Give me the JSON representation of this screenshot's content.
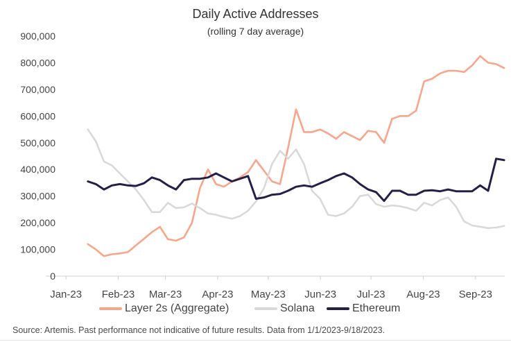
{
  "chart_data": {
    "type": "line",
    "title": "Daily Active Addresses",
    "subtitle": "(rolling 7 day average)",
    "xlabel": "",
    "ylabel": "",
    "x_range": [
      "2023-01-14",
      "2023-09-18"
    ],
    "xlim": [
      "2022-12-20",
      "2023-09-20"
    ],
    "ylim": [
      0,
      900000
    ],
    "x_tick_labels": [
      "Jan-23",
      "Feb-23",
      "Mar-23",
      "Apr-23",
      "May-23",
      "Jun-23",
      "Jul-23",
      "Aug-23",
      "Sep-23"
    ],
    "x_tick_dates": [
      "2023-01-01",
      "2023-02-01",
      "2023-03-01",
      "2023-04-01",
      "2023-05-01",
      "2023-06-01",
      "2023-07-01",
      "2023-08-01",
      "2023-09-01"
    ],
    "y_ticks": [
      0,
      100000,
      200000,
      300000,
      400000,
      500000,
      600000,
      700000,
      800000,
      900000
    ],
    "y_tick_labels": [
      "0",
      "100,000",
      "200,000",
      "300,000",
      "400,000",
      "500,000",
      "600,000",
      "700,000",
      "800,000",
      "900,000"
    ],
    "grid": false,
    "legend_position": "bottom",
    "series": [
      {
        "name": "Layer 2s (Aggregate)",
        "color": "#F9A58A",
        "values": [
          120000,
          100000,
          75000,
          82000,
          85000,
          90000,
          115000,
          140000,
          165000,
          185000,
          138000,
          133000,
          145000,
          200000,
          330000,
          400000,
          345000,
          335000,
          355000,
          370000,
          390000,
          435000,
          395000,
          355000,
          345000,
          480000,
          625000,
          540000,
          540000,
          550000,
          535000,
          515000,
          540000,
          525000,
          510000,
          545000,
          540000,
          500000,
          590000,
          600000,
          600000,
          620000,
          730000,
          740000,
          760000,
          770000,
          770000,
          765000,
          790000,
          825000,
          800000,
          795000,
          780000
        ]
      },
      {
        "name": "Solana",
        "color": "#D9D9D9",
        "values": [
          550000,
          505000,
          430000,
          415000,
          385000,
          355000,
          325000,
          285000,
          240000,
          240000,
          275000,
          255000,
          258000,
          272000,
          255000,
          235000,
          230000,
          222000,
          215000,
          225000,
          245000,
          280000,
          330000,
          420000,
          470000,
          440000,
          475000,
          420000,
          320000,
          290000,
          230000,
          225000,
          235000,
          260000,
          300000,
          305000,
          270000,
          260000,
          265000,
          262000,
          255000,
          245000,
          275000,
          265000,
          285000,
          295000,
          260000,
          205000,
          190000,
          185000,
          180000,
          182000,
          188000
        ]
      },
      {
        "name": "Ethereum",
        "color": "#231F48",
        "values": [
          355000,
          345000,
          325000,
          340000,
          345000,
          340000,
          338000,
          348000,
          370000,
          360000,
          340000,
          325000,
          360000,
          365000,
          365000,
          370000,
          385000,
          370000,
          355000,
          365000,
          375000,
          290000,
          295000,
          305000,
          308000,
          320000,
          335000,
          340000,
          335000,
          348000,
          360000,
          375000,
          385000,
          370000,
          345000,
          325000,
          315000,
          282000,
          320000,
          320000,
          305000,
          305000,
          320000,
          322000,
          318000,
          325000,
          318000,
          318000,
          318000,
          340000,
          320000,
          440000,
          435000
        ]
      }
    ]
  },
  "source_note": "Source: Artemis. Past performance not indicative of future results. Data from 1/1/2023-9/18/2023."
}
